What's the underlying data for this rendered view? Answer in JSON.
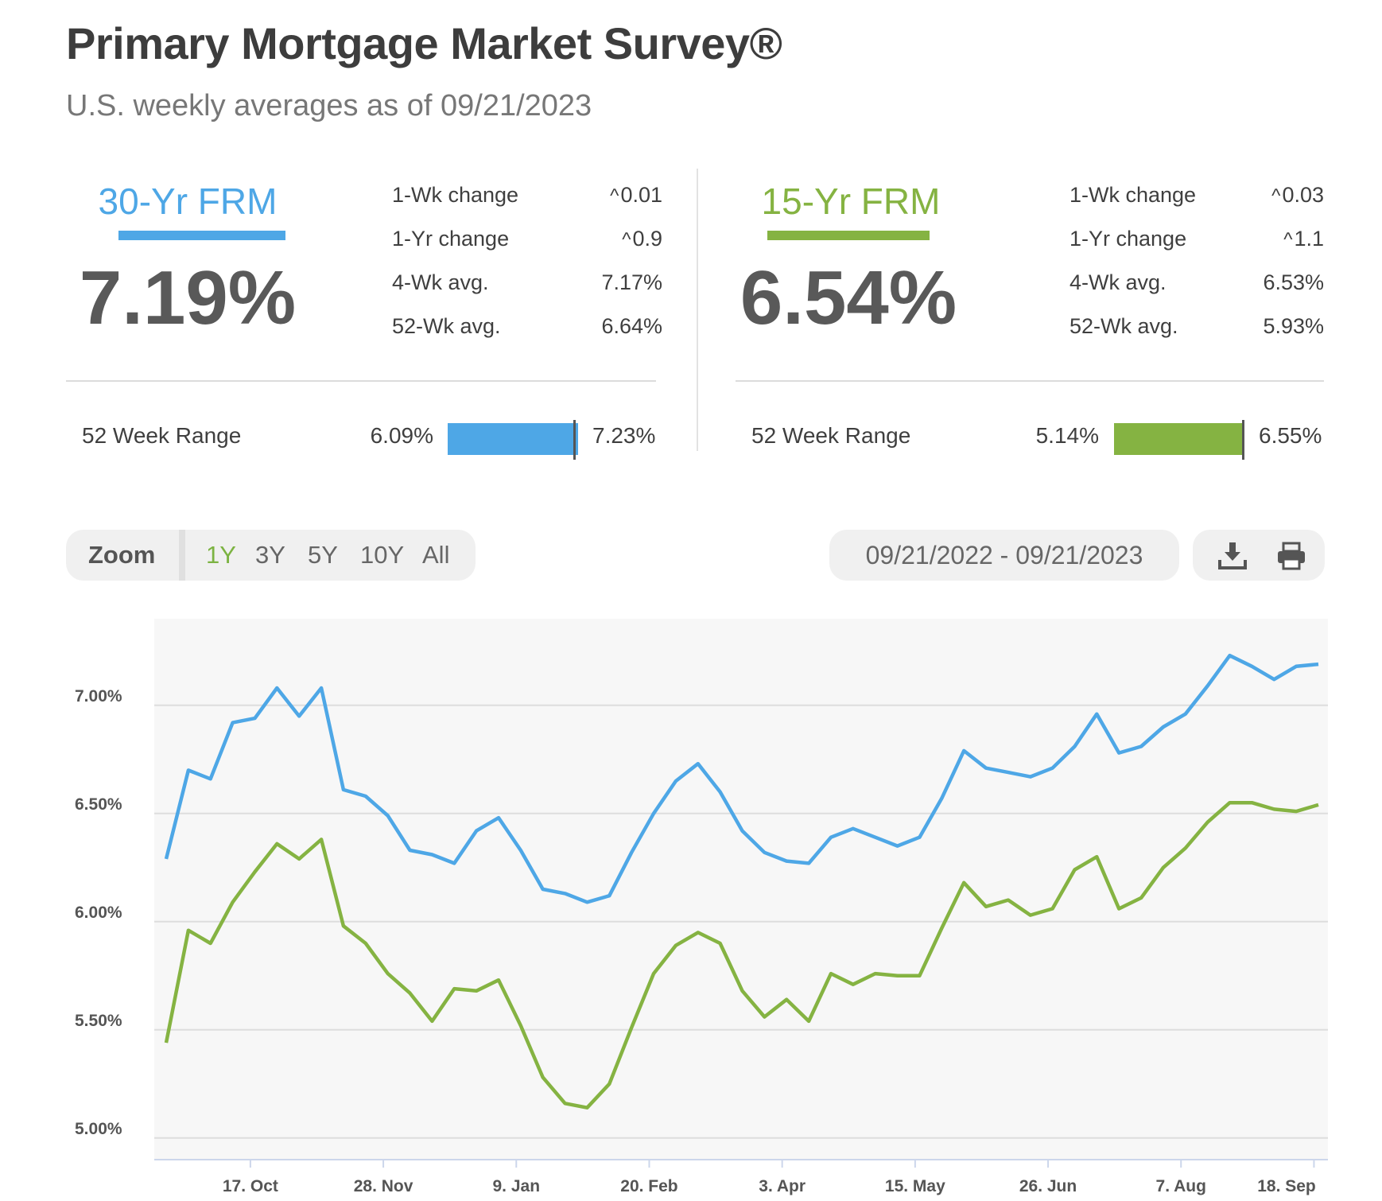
{
  "header": {
    "title": "Primary Mortgage Market Survey®",
    "subtitle": "U.S. weekly averages as of 09/21/2023"
  },
  "rates": [
    {
      "name": "30-Yr FRM",
      "rate": "7.19%",
      "color": "#4ea7e6",
      "stats": [
        {
          "label": "1-Wk change",
          "value": "0.01",
          "caret": "^"
        },
        {
          "label": "1-Yr change",
          "value": "0.9",
          "caret": "^"
        },
        {
          "label": "4-Wk avg.",
          "value": "7.17%",
          "caret": ""
        },
        {
          "label": "52-Wk avg.",
          "value": "6.64%",
          "caret": ""
        }
      ],
      "range": {
        "label": "52 Week Range",
        "low": "6.09%",
        "high": "7.23%",
        "current_fraction": 0.965
      }
    },
    {
      "name": "15-Yr FRM",
      "rate": "6.54%",
      "color": "#85b342",
      "stats": [
        {
          "label": "1-Wk change",
          "value": "0.03",
          "caret": "^"
        },
        {
          "label": "1-Yr change",
          "value": "1.1",
          "caret": "^"
        },
        {
          "label": "4-Wk avg.",
          "value": "6.53%",
          "caret": ""
        },
        {
          "label": "52-Wk avg.",
          "value": "5.93%",
          "caret": ""
        }
      ],
      "range": {
        "label": "52 Week Range",
        "low": "5.14%",
        "high": "6.55%",
        "current_fraction": 0.993
      }
    }
  ],
  "toolbar": {
    "zoom_label": "Zoom",
    "zoom_options": [
      "1Y",
      "3Y",
      "5Y",
      "10Y",
      "All"
    ],
    "zoom_active": "1Y",
    "date_range": "09/21/2022 - 09/21/2023",
    "icons": [
      "download-icon",
      "print-icon"
    ]
  },
  "chart_data": {
    "type": "line",
    "ylim": [
      4.9,
      7.4
    ],
    "y_ticks": [
      5.0,
      5.5,
      6.0,
      6.5,
      7.0
    ],
    "y_tick_labels": [
      "5.00%",
      "5.50%",
      "6.00%",
      "6.50%",
      "7.00%"
    ],
    "x_tick_labels": [
      "17. Oct",
      "28. Nov",
      "9. Jan",
      "20. Feb",
      "3. Apr",
      "15. May",
      "26. Jun",
      "7. Aug",
      "18. Sep"
    ],
    "x_tick_indices": [
      3.8,
      9.8,
      15.8,
      21.8,
      27.8,
      33.8,
      39.8,
      45.8,
      51.8
    ],
    "grid": true,
    "legend": "none",
    "series": [
      {
        "color": "#4ea7e6",
        "values": [
          6.29,
          6.7,
          6.66,
          6.92,
          6.94,
          7.08,
          6.95,
          7.08,
          6.61,
          6.58,
          6.49,
          6.33,
          6.31,
          6.27,
          6.42,
          6.48,
          6.33,
          6.15,
          6.13,
          6.09,
          6.12,
          6.32,
          6.5,
          6.65,
          6.73,
          6.6,
          6.42,
          6.32,
          6.28,
          6.27,
          6.39,
          6.43,
          6.39,
          6.35,
          6.39,
          6.57,
          6.79,
          6.71,
          6.69,
          6.67,
          6.71,
          6.81,
          6.96,
          6.78,
          6.81,
          6.9,
          6.96,
          7.09,
          7.23,
          7.18,
          7.12,
          7.18,
          7.19
        ]
      },
      {
        "color": "#85b342",
        "values": [
          5.44,
          5.96,
          5.9,
          6.09,
          6.23,
          6.36,
          6.29,
          6.38,
          5.98,
          5.9,
          5.76,
          5.67,
          5.54,
          5.69,
          5.68,
          5.73,
          5.52,
          5.28,
          5.16,
          5.14,
          5.25,
          5.51,
          5.76,
          5.89,
          5.95,
          5.9,
          5.68,
          5.56,
          5.64,
          5.54,
          5.76,
          5.71,
          5.76,
          5.75,
          5.75,
          5.97,
          6.18,
          6.07,
          6.1,
          6.03,
          6.06,
          6.24,
          6.3,
          6.06,
          6.11,
          6.25,
          6.34,
          6.46,
          6.55,
          6.55,
          6.52,
          6.51,
          6.54
        ]
      }
    ]
  }
}
